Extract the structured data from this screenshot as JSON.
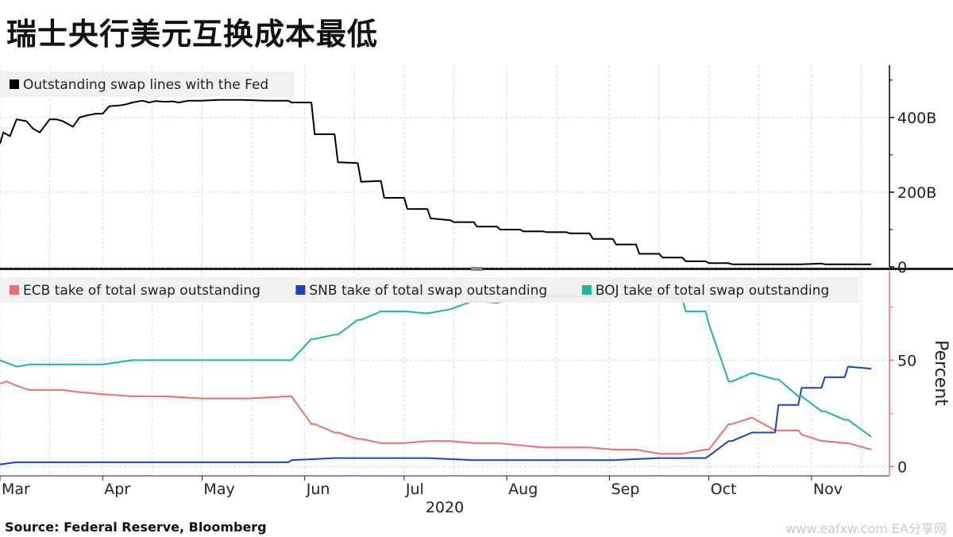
{
  "title": "瑞士央行美元互换成本最低",
  "source": "Source:  Federal Reserve, Bloomberg",
  "watermark": "www.eafxw.com  EA分享网",
  "chart_data": [
    {
      "type": "line",
      "panel": "top",
      "legend": "top-left",
      "ylabel": "",
      "ylim": [
        0,
        540
      ],
      "yticks": [
        {
          "value": 0,
          "label": "0"
        },
        {
          "value": 200,
          "label": "200B"
        },
        {
          "value": 400,
          "label": "400B"
        }
      ],
      "grid": true,
      "series": [
        {
          "name": "Outstanding swap lines with the Fed",
          "color": "#000000",
          "x": [
            "2020-03-01",
            "2020-03-02",
            "2020-03-04",
            "2020-03-06",
            "2020-03-09",
            "2020-03-11",
            "2020-03-13",
            "2020-03-16",
            "2020-03-18",
            "2020-03-20",
            "2020-03-23",
            "2020-03-25",
            "2020-03-27",
            "2020-03-30",
            "2020-04-01",
            "2020-04-03",
            "2020-04-06",
            "2020-04-08",
            "2020-04-10",
            "2020-04-13",
            "2020-04-15",
            "2020-04-17",
            "2020-04-20",
            "2020-04-22",
            "2020-04-24",
            "2020-04-27",
            "2020-04-29",
            "2020-05-01",
            "2020-05-06",
            "2020-05-13",
            "2020-05-20",
            "2020-05-27",
            "2020-05-28",
            "2020-06-03",
            "2020-06-04",
            "2020-06-10",
            "2020-06-11",
            "2020-06-17",
            "2020-06-18",
            "2020-06-24",
            "2020-06-25",
            "2020-07-01",
            "2020-07-02",
            "2020-07-08",
            "2020-07-09",
            "2020-07-15",
            "2020-07-16",
            "2020-07-22",
            "2020-07-23",
            "2020-07-29",
            "2020-07-30",
            "2020-08-05",
            "2020-08-06",
            "2020-08-12",
            "2020-08-13",
            "2020-08-19",
            "2020-08-20",
            "2020-08-26",
            "2020-08-27",
            "2020-09-02",
            "2020-09-03",
            "2020-09-09",
            "2020-09-10",
            "2020-09-16",
            "2020-09-17",
            "2020-09-23",
            "2020-09-24",
            "2020-09-30",
            "2020-10-01",
            "2020-10-07",
            "2020-10-08",
            "2020-10-28",
            "2020-10-29",
            "2020-11-04",
            "2020-11-05",
            "2020-11-19"
          ],
          "values": [
            330,
            360,
            350,
            395,
            390,
            370,
            360,
            395,
            395,
            390,
            375,
            400,
            405,
            410,
            410,
            430,
            432,
            435,
            440,
            445,
            440,
            444,
            442,
            443,
            440,
            445,
            445,
            445,
            447,
            447,
            445,
            445,
            440,
            440,
            355,
            355,
            280,
            278,
            228,
            230,
            185,
            185,
            155,
            155,
            130,
            125,
            120,
            120,
            108,
            108,
            100,
            100,
            95,
            95,
            93,
            93,
            90,
            90,
            75,
            75,
            60,
            60,
            35,
            35,
            25,
            25,
            15,
            15,
            10,
            10,
            7,
            7,
            7,
            9,
            7,
            7
          ]
        }
      ]
    },
    {
      "type": "line",
      "panel": "bottom",
      "legend": "top-left",
      "ylabel": "Percent",
      "ylim": [
        -4,
        92
      ],
      "yticks": [
        {
          "value": 0,
          "label": "0"
        },
        {
          "value": 50,
          "label": "50"
        }
      ],
      "grid": true,
      "xlabel": "2020",
      "xticks": [
        {
          "date": "2020-03-01",
          "label": "Mar"
        },
        {
          "date": "2020-04-01",
          "label": "Apr"
        },
        {
          "date": "2020-05-01",
          "label": "May"
        },
        {
          "date": "2020-06-01",
          "label": "Jun"
        },
        {
          "date": "2020-07-01",
          "label": "Jul"
        },
        {
          "date": "2020-08-01",
          "label": "Aug"
        },
        {
          "date": "2020-09-01",
          "label": "Sep"
        },
        {
          "date": "2020-10-01",
          "label": "Oct"
        },
        {
          "date": "2020-11-01",
          "label": "Nov"
        }
      ],
      "series": [
        {
          "name": "ECB take of total swap outstanding",
          "color": "#ef6f6c",
          "x": [
            "2020-03-01",
            "2020-03-03",
            "2020-03-06",
            "2020-03-10",
            "2020-03-16",
            "2020-03-20",
            "2020-03-25",
            "2020-04-01",
            "2020-04-10",
            "2020-04-20",
            "2020-05-01",
            "2020-05-15",
            "2020-05-27",
            "2020-05-28",
            "2020-06-03",
            "2020-06-04",
            "2020-06-10",
            "2020-06-11",
            "2020-06-17",
            "2020-06-18",
            "2020-06-24",
            "2020-06-25",
            "2020-07-01",
            "2020-07-08",
            "2020-07-15",
            "2020-07-22",
            "2020-07-29",
            "2020-08-05",
            "2020-08-12",
            "2020-08-19",
            "2020-08-26",
            "2020-09-02",
            "2020-09-09",
            "2020-09-16",
            "2020-09-23",
            "2020-09-30",
            "2020-10-01",
            "2020-10-07",
            "2020-10-08",
            "2020-10-14",
            "2020-10-21",
            "2020-10-28",
            "2020-10-29",
            "2020-11-04",
            "2020-11-05",
            "2020-11-11",
            "2020-11-12",
            "2020-11-19"
          ],
          "values": [
            39,
            40,
            38,
            36,
            36,
            36,
            35,
            34,
            33,
            33,
            32,
            32,
            33,
            33,
            20,
            20,
            16,
            16,
            13,
            13,
            11,
            11,
            11,
            12,
            12,
            11,
            11,
            10,
            9,
            9,
            9,
            8,
            8,
            6,
            6,
            8,
            8,
            20,
            20,
            23,
            17,
            17,
            15,
            12,
            12,
            11,
            11,
            8
          ]
        },
        {
          "name": "SNB take of total swap outstanding",
          "color": "#1a44b8",
          "x": [
            "2020-03-01",
            "2020-03-06",
            "2020-03-16",
            "2020-04-01",
            "2020-04-20",
            "2020-05-15",
            "2020-05-27",
            "2020-05-28",
            "2020-06-10",
            "2020-06-24",
            "2020-07-08",
            "2020-07-22",
            "2020-08-05",
            "2020-08-19",
            "2020-09-02",
            "2020-09-16",
            "2020-09-30",
            "2020-10-01",
            "2020-10-07",
            "2020-10-08",
            "2020-10-14",
            "2020-10-21",
            "2020-10-22",
            "2020-10-28",
            "2020-10-29",
            "2020-11-04",
            "2020-11-05",
            "2020-11-11",
            "2020-11-12",
            "2020-11-19"
          ],
          "values": [
            1,
            2,
            2,
            2,
            2,
            2,
            2,
            3,
            4,
            4,
            4,
            3,
            3,
            3,
            3,
            4,
            4,
            5,
            12,
            12,
            16,
            16,
            29,
            29,
            37,
            37,
            42,
            42,
            47,
            46
          ]
        },
        {
          "name": "BOJ take of total swap outstanding",
          "color": "#1fb59a",
          "x": [
            "2020-03-01",
            "2020-03-06",
            "2020-03-10",
            "2020-03-16",
            "2020-04-01",
            "2020-04-10",
            "2020-04-20",
            "2020-05-01",
            "2020-05-15",
            "2020-05-27",
            "2020-05-28",
            "2020-06-03",
            "2020-06-04",
            "2020-06-10",
            "2020-06-11",
            "2020-06-17",
            "2020-06-18",
            "2020-06-24",
            "2020-06-25",
            "2020-07-01",
            "2020-07-08",
            "2020-07-15",
            "2020-07-22",
            "2020-07-29",
            "2020-08-05",
            "2020-08-12",
            "2020-08-19",
            "2020-08-26",
            "2020-09-02",
            "2020-09-09",
            "2020-09-16",
            "2020-09-23",
            "2020-09-24",
            "2020-09-30",
            "2020-10-01",
            "2020-10-07",
            "2020-10-08",
            "2020-10-14",
            "2020-10-21",
            "2020-10-22",
            "2020-10-28",
            "2020-10-29",
            "2020-11-04",
            "2020-11-05",
            "2020-11-11",
            "2020-11-12",
            "2020-11-19"
          ],
          "values": [
            50,
            47,
            48,
            48,
            48,
            50,
            50,
            50,
            50,
            50,
            50,
            60,
            60,
            62,
            62,
            69,
            69,
            73,
            73,
            73,
            72,
            74,
            78,
            77,
            79,
            80,
            80,
            80,
            81,
            81,
            80,
            79,
            73,
            73,
            67,
            40,
            40,
            44,
            41,
            41,
            33,
            33,
            26,
            26,
            22,
            22,
            14
          ]
        }
      ]
    }
  ]
}
